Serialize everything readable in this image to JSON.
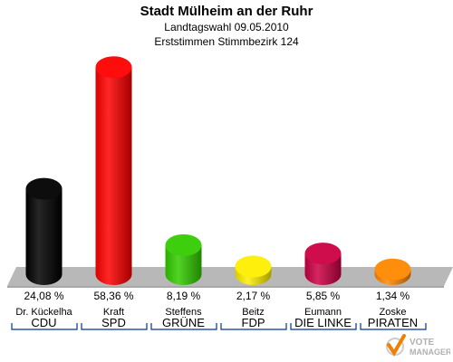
{
  "header": {
    "title": "Stadt Mülheim an der Ruhr",
    "subtitle": "Landtagswahl 09.05.2010",
    "subtitle2": "Erststimmen Stimmbezirk 124"
  },
  "colors": {
    "CDU": "#000000",
    "SPD": "#ff0000",
    "GRÜNE": "#33cc00",
    "FDP": "#ffee00",
    "DIE LINKE": "#cc0044",
    "PIRATEN": "#ff8800",
    "platform": "#b8b8b8",
    "underline": "#003399"
  },
  "chart_data": {
    "type": "bar",
    "title": "Stadt Mülheim an der Ruhr",
    "categories": [
      "CDU",
      "SPD",
      "GRÜNE",
      "FDP",
      "DIE LINKE",
      "PIRATEN"
    ],
    "candidates": [
      "Dr. Kückelha",
      "Kraft",
      "Steffens",
      "Beitz",
      "Eumann",
      "Zoske"
    ],
    "values": [
      24.08,
      58.36,
      8.19,
      2.17,
      5.85,
      1.34
    ],
    "value_labels": [
      "24,08 %",
      "58,36 %",
      "8,19 %",
      "2,17 %",
      "5,85 %",
      "1,34 %"
    ],
    "unit": "%",
    "ylim": [
      0,
      60
    ],
    "grid": false,
    "legend": "none"
  },
  "watermark": {
    "text": "VOTE",
    "text2": "MANAGER"
  }
}
